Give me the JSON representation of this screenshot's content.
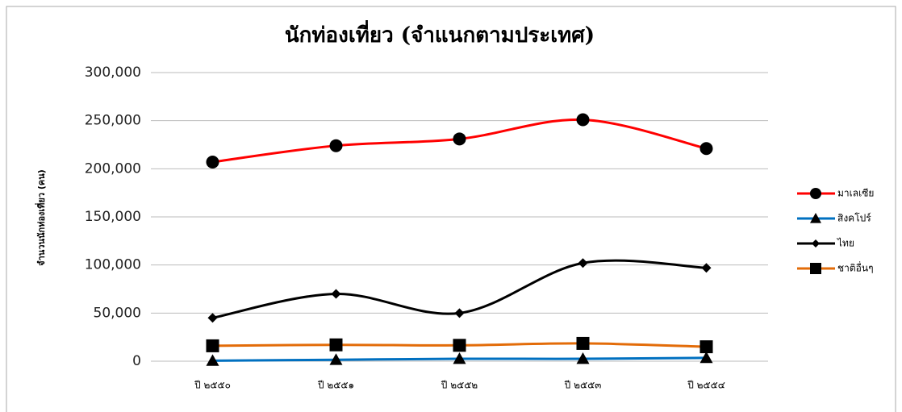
{
  "chart_data": {
    "type": "line",
    "title": "นักท่องเที่ยว (จำแนกตามประเทศ)",
    "y_label": "จำนวนนักท่องเที่ยว (คน)",
    "categories": [
      "ปี ๒๕๕๐",
      "ปี ๒๕๕๑",
      "ปี ๒๕๕๒",
      "ปี ๒๕๕๓",
      "ปี ๒๕๕๔"
    ],
    "series": [
      {
        "name": "มาเลเซีย",
        "color": "#ff0000",
        "marker": "circle",
        "values": [
          207000,
          224000,
          231000,
          251000,
          221000
        ]
      },
      {
        "name": "สิงคโปร์",
        "color": "#0070c0",
        "marker": "triangle",
        "values": [
          500,
          1500,
          2500,
          2500,
          3500
        ]
      },
      {
        "name": "ไทย",
        "color": "#000000",
        "marker": "diamond",
        "values": [
          45000,
          70000,
          50000,
          102000,
          97000
        ]
      },
      {
        "name": "ชาติอื่นๆ",
        "color": "#e36c09",
        "marker": "square",
        "values": [
          16000,
          17000,
          16500,
          18500,
          15000
        ]
      }
    ],
    "ylim": [
      0,
      300000
    ],
    "yticks": [
      0,
      {
        "value": 50000,
        "label": "50,000"
      },
      {
        "value": 100000,
        "label": "100,000"
      },
      {
        "value": 150000,
        "label": "150,000"
      },
      {
        "value": 200000,
        "label": "200,000"
      },
      {
        "value": 250000,
        "label": "250,000"
      },
      {
        "value": 300000,
        "label": "300,000"
      }
    ],
    "grid": true,
    "legend": "right",
    "smooth": true
  }
}
